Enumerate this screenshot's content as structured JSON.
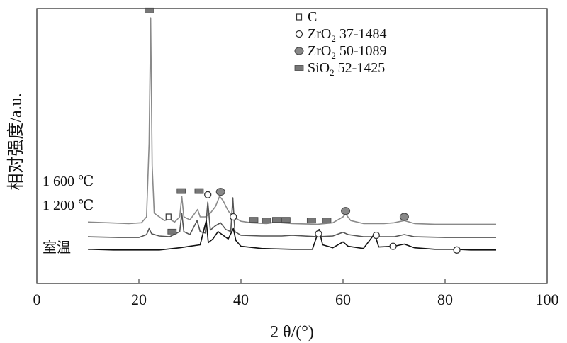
{
  "chart_data": {
    "type": "line",
    "xlabel": "2 θ/(°)",
    "ylabel": "相对强度/a.u.",
    "xlim": [
      0,
      100
    ],
    "xticks": [
      "0",
      "20",
      "40",
      "60",
      "80",
      "100"
    ],
    "legend": {
      "placement": "top-right",
      "entries": [
        {
          "marker": "open-square",
          "label": "C"
        },
        {
          "marker": "open-circle",
          "label": "ZrO",
          "sub": "2",
          "rest": " 37-1484"
        },
        {
          "marker": "filled-circle",
          "label": "ZrO",
          "sub": "2",
          "rest": " 50-1089"
        },
        {
          "marker": "filled-rect",
          "label": "SiO",
          "sub": "2",
          "rest": " 52-1425"
        }
      ]
    },
    "series": [
      {
        "name": "1 600 ℃",
        "color": "#8a8a8a",
        "base": 0.0,
        "points": [
          [
            10,
            0.43
          ],
          [
            14,
            0.42
          ],
          [
            18,
            0.41
          ],
          [
            20.5,
            0.42
          ],
          [
            21.5,
            0.5
          ],
          [
            22.0,
            1.5
          ],
          [
            22.3,
            3.2
          ],
          [
            22.6,
            1.2
          ],
          [
            23.0,
            0.55
          ],
          [
            25,
            0.45
          ],
          [
            26,
            0.47
          ],
          [
            27,
            0.43
          ],
          [
            28.0,
            0.5
          ],
          [
            28.4,
            0.78
          ],
          [
            28.8,
            0.5
          ],
          [
            30,
            0.46
          ],
          [
            31.5,
            0.6
          ],
          [
            32,
            0.5
          ],
          [
            33,
            0.5
          ],
          [
            34,
            0.55
          ],
          [
            35,
            0.64
          ],
          [
            35.8,
            0.78
          ],
          [
            36.5,
            0.72
          ],
          [
            37.5,
            0.58
          ],
          [
            38.5,
            0.5
          ],
          [
            40,
            0.44
          ],
          [
            42,
            0.42
          ],
          [
            45,
            0.41
          ],
          [
            47,
            0.43
          ],
          [
            48,
            0.42
          ],
          [
            50,
            0.41
          ],
          [
            55,
            0.4
          ],
          [
            58,
            0.42
          ],
          [
            60,
            0.5
          ],
          [
            60.5,
            0.54
          ],
          [
            61.5,
            0.45
          ],
          [
            64,
            0.41
          ],
          [
            68,
            0.41
          ],
          [
            70,
            0.42
          ],
          [
            72,
            0.45
          ],
          [
            74,
            0.41
          ],
          [
            78,
            0.4
          ],
          [
            85,
            0.4
          ],
          [
            90,
            0.4
          ]
        ]
      },
      {
        "name": "1 200 ℃",
        "color": "#555555",
        "base": 0.0,
        "points": [
          [
            10,
            0.23
          ],
          [
            16,
            0.22
          ],
          [
            20,
            0.22
          ],
          [
            21.5,
            0.26
          ],
          [
            22,
            0.34
          ],
          [
            22.5,
            0.27
          ],
          [
            24,
            0.24
          ],
          [
            26,
            0.23
          ],
          [
            28,
            0.3
          ],
          [
            28.4,
            0.55
          ],
          [
            28.8,
            0.3
          ],
          [
            30,
            0.26
          ],
          [
            31.4,
            0.45
          ],
          [
            32,
            0.3
          ],
          [
            33,
            0.28
          ],
          [
            33.5,
            0.7
          ],
          [
            34,
            0.32
          ],
          [
            35,
            0.38
          ],
          [
            36,
            0.42
          ],
          [
            37,
            0.33
          ],
          [
            38,
            0.3
          ],
          [
            38.4,
            0.76
          ],
          [
            38.8,
            0.3
          ],
          [
            40,
            0.25
          ],
          [
            44,
            0.24
          ],
          [
            48,
            0.24
          ],
          [
            50,
            0.25
          ],
          [
            55,
            0.23
          ],
          [
            58,
            0.24
          ],
          [
            60,
            0.29
          ],
          [
            61,
            0.26
          ],
          [
            64,
            0.23
          ],
          [
            70,
            0.23
          ],
          [
            72,
            0.26
          ],
          [
            74,
            0.23
          ],
          [
            80,
            0.22
          ],
          [
            90,
            0.22
          ]
        ]
      },
      {
        "name": "室温",
        "color": "#111111",
        "base": 0.0,
        "points": [
          [
            10,
            0.06
          ],
          [
            15,
            0.05
          ],
          [
            20,
            0.05
          ],
          [
            24,
            0.05
          ],
          [
            28,
            0.08
          ],
          [
            30,
            0.1
          ],
          [
            32,
            0.12
          ],
          [
            33.2,
            0.45
          ],
          [
            33.6,
            0.15
          ],
          [
            34.5,
            0.2
          ],
          [
            35.5,
            0.3
          ],
          [
            36.5,
            0.25
          ],
          [
            37.5,
            0.2
          ],
          [
            38.5,
            0.34
          ],
          [
            39,
            0.18
          ],
          [
            40,
            0.1
          ],
          [
            44,
            0.07
          ],
          [
            50,
            0.06
          ],
          [
            54,
            0.06
          ],
          [
            55.3,
            0.33
          ],
          [
            56,
            0.12
          ],
          [
            58,
            0.08
          ],
          [
            60,
            0.16
          ],
          [
            61,
            0.1
          ],
          [
            64,
            0.07
          ],
          [
            66.2,
            0.27
          ],
          [
            67,
            0.09
          ],
          [
            70,
            0.1
          ],
          [
            72,
            0.13
          ],
          [
            74,
            0.08
          ],
          [
            78,
            0.06
          ],
          [
            82,
            0.06
          ],
          [
            85,
            0.05
          ],
          [
            90,
            0.05
          ]
        ]
      }
    ],
    "markers": [
      {
        "type": "filled-rect",
        "x": 22,
        "y": 3.3
      },
      {
        "type": "open-square",
        "x": 25.8,
        "y": 0.5
      },
      {
        "type": "filled-rect",
        "x": 28.3,
        "y": 0.85
      },
      {
        "type": "filled-rect",
        "x": 31.8,
        "y": 0.85
      },
      {
        "type": "open-circle",
        "x": 33.5,
        "y": 0.8
      },
      {
        "type": "filled-circle",
        "x": 36,
        "y": 0.84
      },
      {
        "type": "filled-rect",
        "x": 26.5,
        "y": 0.3
      },
      {
        "type": "open-circle",
        "x": 38.5,
        "y": 0.5
      },
      {
        "type": "filled-rect",
        "x": 42.5,
        "y": 0.46
      },
      {
        "type": "filled-rect",
        "x": 45,
        "y": 0.45
      },
      {
        "type": "filled-rect",
        "x": 47,
        "y": 0.46
      },
      {
        "type": "filled-rect",
        "x": 48.8,
        "y": 0.46
      },
      {
        "type": "filled-rect",
        "x": 53.8,
        "y": 0.45
      },
      {
        "type": "filled-rect",
        "x": 56.8,
        "y": 0.45
      },
      {
        "type": "filled-circle",
        "x": 60.5,
        "y": 0.58
      },
      {
        "type": "filled-circle",
        "x": 72,
        "y": 0.5
      },
      {
        "type": "open-circle",
        "x": 55.2,
        "y": 0.27
      },
      {
        "type": "open-circle",
        "x": 66.5,
        "y": 0.25
      },
      {
        "type": "open-circle",
        "x": 69.8,
        "y": 0.1
      },
      {
        "type": "open-circle",
        "x": 82.3,
        "y": 0.05
      }
    ]
  }
}
